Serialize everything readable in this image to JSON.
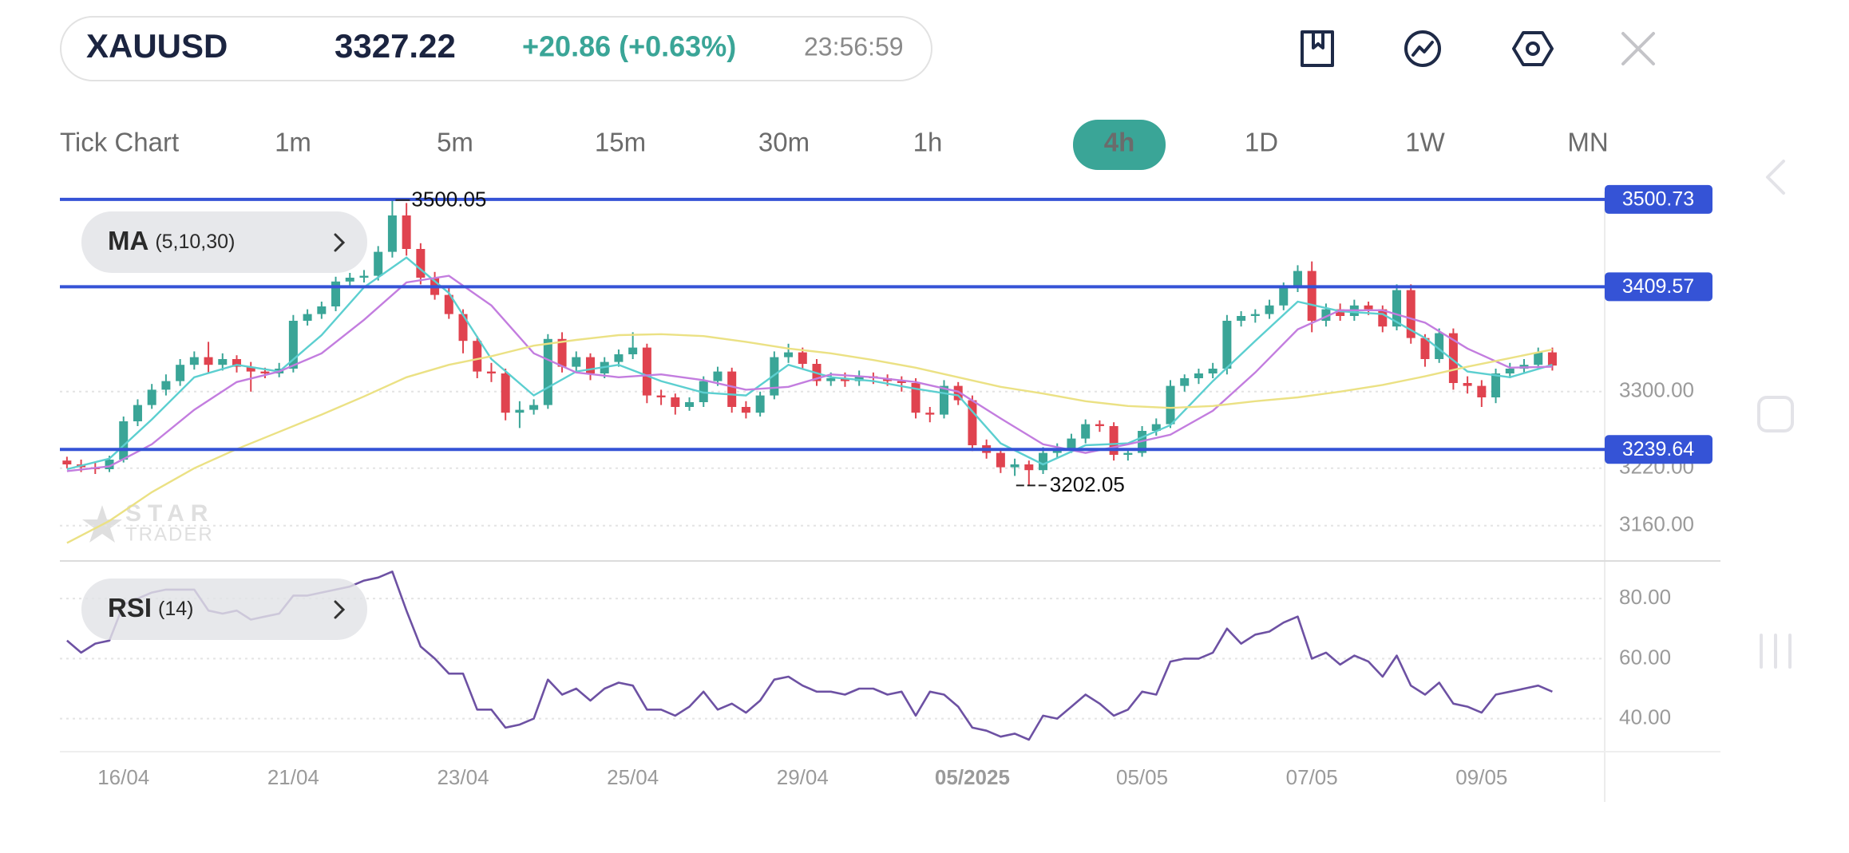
{
  "header": {
    "symbol": "XAUUSD",
    "price": "3327.22",
    "change": "+20.86 (+0.63%)",
    "time": "23:56:59"
  },
  "timeframes": [
    {
      "label": "Tick Chart"
    },
    {
      "label": "1m"
    },
    {
      "label": "5m"
    },
    {
      "label": "15m"
    },
    {
      "label": "30m"
    },
    {
      "label": "1h"
    },
    {
      "label": "4h",
      "active": true
    },
    {
      "label": "1D"
    },
    {
      "label": "1W"
    },
    {
      "label": "MN"
    }
  ],
  "watermark": [
    "STAR",
    "TRADER"
  ],
  "chart_data": [
    {
      "type": "candlestick",
      "up_color": "#3aa597",
      "down_color": "#e0434f",
      "grid": true,
      "xlim": [
        -0.5,
        108.7
      ],
      "ylim": [
        3124,
        3509
      ],
      "xticks": [
        {
          "value": 4,
          "label": "16/04"
        },
        {
          "value": 16,
          "label": "21/04"
        },
        {
          "value": 28,
          "label": "23/04"
        },
        {
          "value": 40,
          "label": "25/04"
        },
        {
          "value": 52,
          "label": "29/04"
        },
        {
          "value": 64,
          "label": "05/2025",
          "bold": true
        },
        {
          "value": 76,
          "label": "05/05"
        },
        {
          "value": 88,
          "label": "07/05"
        },
        {
          "value": 100,
          "label": "09/05"
        }
      ],
      "yticks": [
        {
          "value": 3300,
          "label": "3300.00"
        },
        {
          "value": 3220,
          "label": "3220.00"
        },
        {
          "value": 3160,
          "label": "3160.00"
        }
      ],
      "levels": [
        {
          "value": 3500.73,
          "color": "#3553d6"
        },
        {
          "value": 3409.57,
          "color": "#3553d6"
        },
        {
          "value": 3239.64,
          "color": "#3553d6"
        }
      ],
      "candles": [
        [
          3228,
          3232,
          3220,
          3224
        ],
        [
          3224,
          3229,
          3216,
          3221
        ],
        [
          3221,
          3226,
          3214,
          3219
        ],
        [
          3219,
          3233,
          3216,
          3229
        ],
        [
          3229,
          3274,
          3226,
          3269
        ],
        [
          3269,
          3292,
          3264,
          3286
        ],
        [
          3286,
          3308,
          3282,
          3302
        ],
        [
          3302,
          3318,
          3296,
          3311
        ],
        [
          3311,
          3334,
          3306,
          3328
        ],
        [
          3328,
          3342,
          3323,
          3336
        ],
        [
          3336,
          3352,
          3320,
          3328
        ],
        [
          3328,
          3340,
          3322,
          3334
        ],
        [
          3334,
          3338,
          3320,
          3326
        ],
        [
          3326,
          3331,
          3300,
          3321
        ],
        [
          3321,
          3325,
          3314,
          3319
        ],
        [
          3319,
          3330,
          3315,
          3324
        ],
        [
          3324,
          3380,
          3320,
          3374
        ],
        [
          3374,
          3386,
          3369,
          3381
        ],
        [
          3381,
          3394,
          3376,
          3389
        ],
        [
          3389,
          3420,
          3384,
          3415
        ],
        [
          3415,
          3424,
          3410,
          3419
        ],
        [
          3419,
          3427,
          3414,
          3421
        ],
        [
          3421,
          3452,
          3416,
          3446
        ],
        [
          3446,
          3500.05,
          3440,
          3484
        ],
        [
          3484,
          3497,
          3442,
          3449
        ],
        [
          3449,
          3455,
          3412,
          3419
        ],
        [
          3419,
          3425,
          3396,
          3401
        ],
        [
          3401,
          3408,
          3376,
          3381
        ],
        [
          3381,
          3386,
          3340,
          3353
        ],
        [
          3353,
          3358,
          3314,
          3321
        ],
        [
          3321,
          3330,
          3310,
          3319
        ],
        [
          3319,
          3324,
          3270,
          3278
        ],
        [
          3278,
          3290,
          3262,
          3281
        ],
        [
          3281,
          3292,
          3276,
          3286
        ],
        [
          3286,
          3360,
          3282,
          3355
        ],
        [
          3355,
          3362,
          3320,
          3326
        ],
        [
          3326,
          3342,
          3320,
          3336
        ],
        [
          3336,
          3340,
          3312,
          3319
        ],
        [
          3319,
          3336,
          3314,
          3331
        ],
        [
          3331,
          3344,
          3326,
          3339
        ],
        [
          3339,
          3362,
          3334,
          3346
        ],
        [
          3346,
          3350,
          3288,
          3296
        ],
        [
          3296,
          3302,
          3286,
          3294
        ],
        [
          3294,
          3298,
          3276,
          3284
        ],
        [
          3284,
          3294,
          3280,
          3289
        ],
        [
          3289,
          3316,
          3284,
          3311
        ],
        [
          3311,
          3326,
          3306,
          3321
        ],
        [
          3321,
          3325,
          3278,
          3284
        ],
        [
          3284,
          3290,
          3272,
          3278
        ],
        [
          3278,
          3300,
          3274,
          3296
        ],
        [
          3296,
          3342,
          3292,
          3336
        ],
        [
          3336,
          3350,
          3330,
          3341
        ],
        [
          3341,
          3346,
          3324,
          3329
        ],
        [
          3329,
          3334,
          3306,
          3311
        ],
        [
          3311,
          3320,
          3306,
          3314
        ],
        [
          3314,
          3320,
          3305,
          3311
        ],
        [
          3311,
          3322,
          3306,
          3316
        ],
        [
          3316,
          3320,
          3308,
          3314
        ],
        [
          3314,
          3318,
          3306,
          3311
        ],
        [
          3311,
          3316,
          3300,
          3309
        ],
        [
          3309,
          3314,
          3272,
          3278
        ],
        [
          3278,
          3284,
          3268,
          3276
        ],
        [
          3276,
          3312,
          3272,
          3306
        ],
        [
          3306,
          3310,
          3286,
          3291
        ],
        [
          3291,
          3296,
          3238,
          3244
        ],
        [
          3244,
          3250,
          3230,
          3236
        ],
        [
          3236,
          3241,
          3215,
          3221
        ],
        [
          3221,
          3230,
          3212,
          3224
        ],
        [
          3224,
          3228,
          3202.05,
          3218
        ],
        [
          3218,
          3242,
          3214,
          3236
        ],
        [
          3236,
          3246,
          3230,
          3241
        ],
        [
          3241,
          3256,
          3236,
          3251
        ],
        [
          3251,
          3271,
          3246,
          3266
        ],
        [
          3266,
          3270,
          3258,
          3264
        ],
        [
          3264,
          3268,
          3228,
          3234
        ],
        [
          3234,
          3240,
          3228,
          3236
        ],
        [
          3236,
          3264,
          3232,
          3259
        ],
        [
          3259,
          3272,
          3254,
          3266
        ],
        [
          3266,
          3312,
          3262,
          3306
        ],
        [
          3306,
          3318,
          3300,
          3314
        ],
        [
          3314,
          3324,
          3308,
          3319
        ],
        [
          3319,
          3330,
          3314,
          3324
        ],
        [
          3324,
          3380,
          3318,
          3374
        ],
        [
          3374,
          3384,
          3368,
          3379
        ],
        [
          3379,
          3386,
          3372,
          3381
        ],
        [
          3381,
          3396,
          3376,
          3390
        ],
        [
          3390,
          3414,
          3385,
          3409
        ],
        [
          3409,
          3432,
          3404,
          3426
        ],
        [
          3426,
          3436,
          3362,
          3374
        ],
        [
          3374,
          3392,
          3368,
          3386
        ],
        [
          3386,
          3392,
          3374,
          3379
        ],
        [
          3379,
          3396,
          3374,
          3390
        ],
        [
          3390,
          3394,
          3380,
          3386
        ],
        [
          3386,
          3390,
          3362,
          3368
        ],
        [
          3368,
          3412,
          3364,
          3406
        ],
        [
          3406,
          3412,
          3350,
          3356
        ],
        [
          3356,
          3360,
          3326,
          3334
        ],
        [
          3334,
          3366,
          3330,
          3361
        ],
        [
          3361,
          3366,
          3302,
          3309
        ],
        [
          3309,
          3316,
          3298,
          3306
        ],
        [
          3306,
          3312,
          3284,
          3294
        ],
        [
          3294,
          3324,
          3288,
          3319
        ],
        [
          3319,
          3330,
          3314,
          3324
        ],
        [
          3324,
          3334,
          3320,
          3328
        ],
        [
          3328,
          3346,
          3324,
          3341
        ],
        [
          3341,
          3346,
          3322,
          3327.22
        ]
      ],
      "overlay": {
        "label": "MA",
        "params": "(5,10,30)",
        "x": [
          0,
          3,
          6,
          9,
          12,
          15,
          18,
          21,
          24,
          27,
          30,
          33,
          36,
          39,
          42,
          45,
          48,
          51,
          54,
          57,
          60,
          63,
          66,
          69,
          72,
          75,
          78,
          81,
          84,
          87,
          90,
          93,
          96,
          99,
          102,
          105
        ],
        "series": [
          {
            "color": "#5ccfd0",
            "values": [
              3219,
              3230,
              3271,
              3315,
              3328,
              3321,
              3359,
              3409,
              3440,
              3403,
              3334,
              3296,
              3321,
              3328,
              3311,
              3299,
              3296,
              3328,
              3315,
              3311,
              3303,
              3296,
              3246,
              3224,
              3244,
              3246,
              3265,
              3311,
              3353,
              3394,
              3384,
              3381,
              3356,
              3321,
              3315,
              3328
            ]
          },
          {
            "color": "#c37ddf",
            "values": [
              3217,
              3222,
              3245,
              3281,
              3310,
              3321,
              3340,
              3375,
              3414,
              3421,
              3390,
              3340,
              3320,
              3315,
              3318,
              3312,
              3302,
              3305,
              3318,
              3315,
              3310,
              3300,
              3272,
              3245,
              3236,
              3245,
              3255,
              3280,
              3320,
              3365,
              3385,
              3385,
              3372,
              3345,
              3325,
              3326
            ]
          },
          {
            "color": "#ebe184",
            "values": [
              3142,
              3165,
              3195,
              3220,
              3240,
              3258,
              3276,
              3295,
              3315,
              3328,
              3337,
              3348,
              3354,
              3359,
              3360,
              3358,
              3352,
              3345,
              3340,
              3333,
              3325,
              3315,
              3305,
              3298,
              3290,
              3285,
              3283,
              3285,
              3290,
              3294,
              3300,
              3307,
              3316,
              3326,
              3335,
              3344
            ]
          }
        ]
      }
    },
    {
      "type": "line",
      "label": "RSI",
      "params": "(14)",
      "color": "#6d51a3",
      "grid": true,
      "xlim": [
        -0.5,
        108.7
      ],
      "ylim": [
        29,
        92
      ],
      "yticks": [
        {
          "value": 80,
          "label": "80.00"
        },
        {
          "value": 60,
          "label": "60.00"
        },
        {
          "value": 40,
          "label": "40.00"
        }
      ],
      "values": [
        66,
        62,
        65,
        66,
        78,
        80,
        82,
        83,
        83,
        83,
        76,
        75,
        76,
        73,
        74,
        75,
        81,
        81,
        82,
        83,
        84,
        86,
        87,
        89,
        76,
        64,
        60,
        55,
        55,
        43,
        43,
        37,
        38,
        40,
        53,
        48,
        50,
        46,
        50,
        52,
        51,
        43,
        43,
        41,
        44,
        49,
        43,
        45,
        42,
        46,
        53,
        54,
        51,
        49,
        49,
        48,
        50,
        50,
        48,
        49,
        41,
        49,
        48,
        44,
        37,
        36,
        34,
        35,
        33,
        41,
        40,
        44,
        48,
        45,
        41,
        43,
        49,
        48,
        59,
        60,
        60,
        62,
        70,
        65,
        68,
        69,
        72,
        74,
        60,
        62,
        58,
        61,
        59,
        54,
        61,
        51,
        48,
        52,
        45,
        44,
        42,
        48,
        49,
        50,
        51,
        49
      ]
    }
  ]
}
